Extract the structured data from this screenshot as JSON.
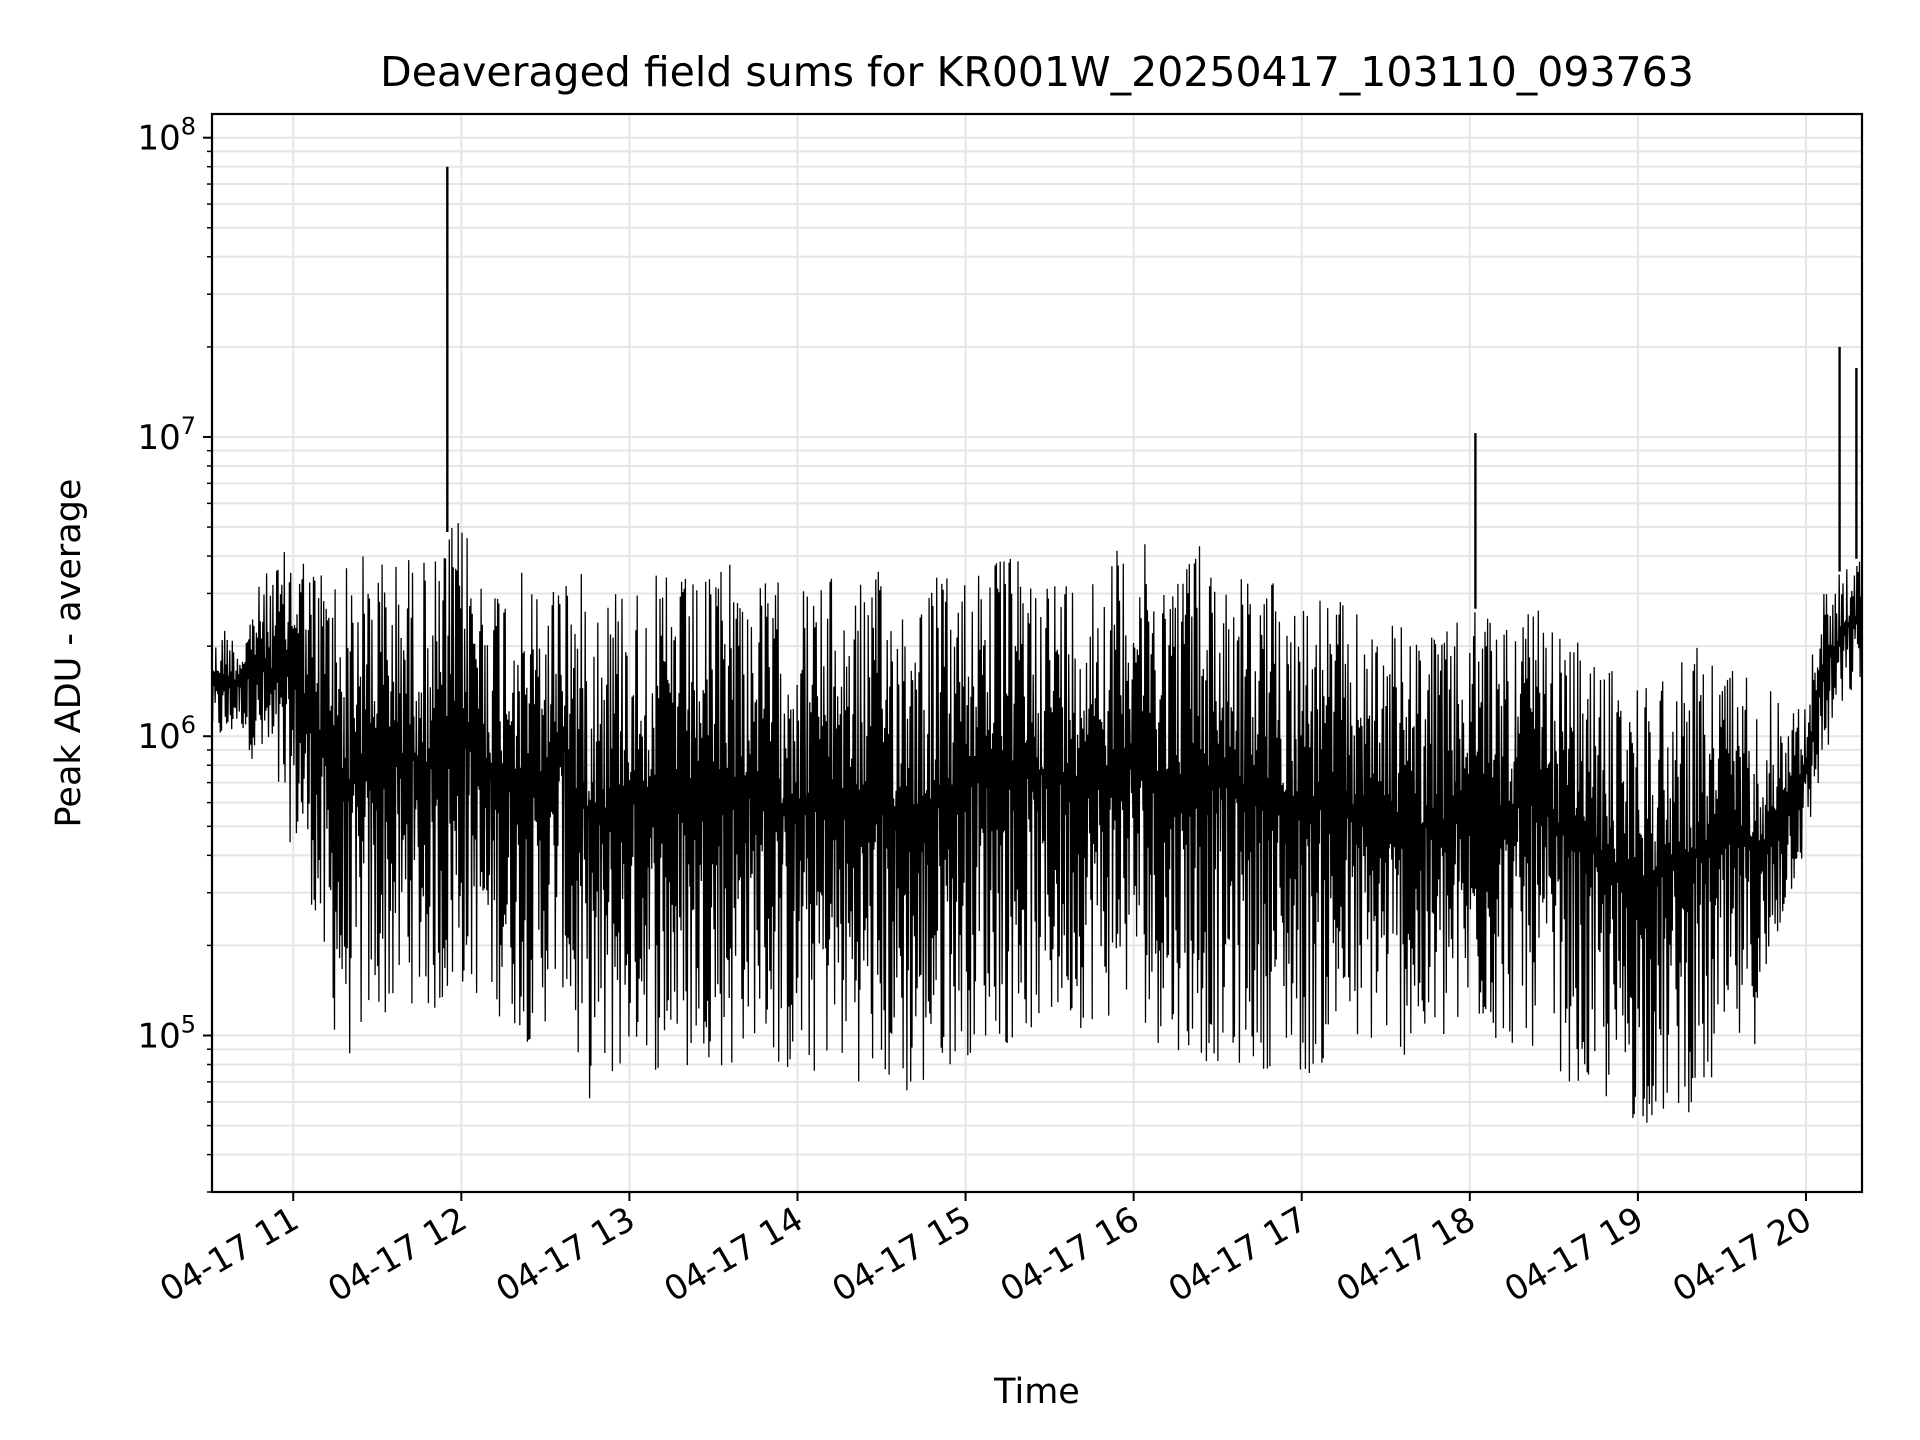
{
  "chart_data": {
    "type": "line",
    "title": "Deaveraged field sums for KR001W_20250417_103110_093763",
    "xlabel": "Time",
    "ylabel": "Peak ADU - average",
    "yscale": "log",
    "xlim": [
      "2025-04-17 10:31",
      "2025-04-17 20:20"
    ],
    "ylim": [
      30000,
      120000000
    ],
    "grid": true,
    "legend": "none",
    "line_color": "#000000",
    "grid_color": "#e5e5e5",
    "x_ticks": [
      {
        "t": "2025-04-17 11:00",
        "label": "04-17 11"
      },
      {
        "t": "2025-04-17 12:00",
        "label": "04-17 12"
      },
      {
        "t": "2025-04-17 13:00",
        "label": "04-17 13"
      },
      {
        "t": "2025-04-17 14:00",
        "label": "04-17 14"
      },
      {
        "t": "2025-04-17 15:00",
        "label": "04-17 15"
      },
      {
        "t": "2025-04-17 16:00",
        "label": "04-17 16"
      },
      {
        "t": "2025-04-17 17:00",
        "label": "04-17 17"
      },
      {
        "t": "2025-04-17 18:00",
        "label": "04-17 18"
      },
      {
        "t": "2025-04-17 19:00",
        "label": "04-17 19"
      },
      {
        "t": "2025-04-17 20:00",
        "label": "04-17 20"
      }
    ],
    "y_ticks": [
      {
        "value": 100000,
        "base": "10",
        "exp": "5"
      },
      {
        "value": 1000000,
        "base": "10",
        "exp": "6"
      },
      {
        "value": 10000000,
        "base": "10",
        "exp": "7"
      },
      {
        "value": 100000000,
        "base": "10",
        "exp": "8"
      }
    ],
    "series": [
      {
        "x": [
          "2025-04-17 10:31",
          "2025-04-17 10:35",
          "2025-04-17 10:40",
          "2025-04-17 10:45",
          "2025-04-17 10:50",
          "2025-04-17 10:55",
          "2025-04-17 11:00",
          "2025-04-17 11:05",
          "2025-04-17 11:10",
          "2025-04-17 11:15",
          "2025-04-17 11:20",
          "2025-04-17 11:25",
          "2025-04-17 11:30",
          "2025-04-17 11:35",
          "2025-04-17 11:40",
          "2025-04-17 11:45",
          "2025-04-17 11:50",
          "2025-04-17 11:55",
          "2025-04-17 12:00",
          "2025-04-17 12:05",
          "2025-04-17 12:10",
          "2025-04-17 12:15",
          "2025-04-17 12:20",
          "2025-04-17 12:25",
          "2025-04-17 12:30",
          "2025-04-17 12:35",
          "2025-04-17 12:40",
          "2025-04-17 12:45",
          "2025-04-17 12:50",
          "2025-04-17 12:55",
          "2025-04-17 13:00",
          "2025-04-17 13:05",
          "2025-04-17 13:10",
          "2025-04-17 13:15",
          "2025-04-17 13:20",
          "2025-04-17 13:25",
          "2025-04-17 13:30",
          "2025-04-17 13:35",
          "2025-04-17 13:40",
          "2025-04-17 13:45",
          "2025-04-17 13:50",
          "2025-04-17 13:55",
          "2025-04-17 14:00",
          "2025-04-17 14:05",
          "2025-04-17 14:10",
          "2025-04-17 14:15",
          "2025-04-17 14:20",
          "2025-04-17 14:25",
          "2025-04-17 14:30",
          "2025-04-17 14:35",
          "2025-04-17 14:40",
          "2025-04-17 14:45",
          "2025-04-17 14:50",
          "2025-04-17 14:55",
          "2025-04-17 15:00",
          "2025-04-17 15:05",
          "2025-04-17 15:10",
          "2025-04-17 15:15",
          "2025-04-17 15:20",
          "2025-04-17 15:25",
          "2025-04-17 15:30",
          "2025-04-17 15:35",
          "2025-04-17 15:40",
          "2025-04-17 15:45",
          "2025-04-17 15:50",
          "2025-04-17 15:55",
          "2025-04-17 16:00",
          "2025-04-17 16:05",
          "2025-04-17 16:10",
          "2025-04-17 16:15",
          "2025-04-17 16:20",
          "2025-04-17 16:25",
          "2025-04-17 16:30",
          "2025-04-17 16:35",
          "2025-04-17 16:40",
          "2025-04-17 16:45",
          "2025-04-17 16:50",
          "2025-04-17 16:55",
          "2025-04-17 17:00",
          "2025-04-17 17:05",
          "2025-04-17 17:10",
          "2025-04-17 17:15",
          "2025-04-17 17:20",
          "2025-04-17 17:25",
          "2025-04-17 17:30",
          "2025-04-17 17:35",
          "2025-04-17 17:40",
          "2025-04-17 17:45",
          "2025-04-17 17:50",
          "2025-04-17 17:55",
          "2025-04-17 18:00",
          "2025-04-17 18:05",
          "2025-04-17 18:10",
          "2025-04-17 18:15",
          "2025-04-17 18:20",
          "2025-04-17 18:25",
          "2025-04-17 18:30",
          "2025-04-17 18:35",
          "2025-04-17 18:40",
          "2025-04-17 18:45",
          "2025-04-17 18:50",
          "2025-04-17 18:55",
          "2025-04-17 19:00",
          "2025-04-17 19:05",
          "2025-04-17 19:10",
          "2025-04-17 19:15",
          "2025-04-17 19:20",
          "2025-04-17 19:25",
          "2025-04-17 19:30",
          "2025-04-17 19:35",
          "2025-04-17 19:40",
          "2025-04-17 19:45",
          "2025-04-17 19:50",
          "2025-04-17 19:55",
          "2025-04-17 20:00",
          "2025-04-17 20:05",
          "2025-04-17 20:10",
          "2025-04-17 20:15",
          "2025-04-17 20:20"
        ],
        "y_high": [
          2000000,
          2400000,
          2000000,
          3000000,
          3600000,
          4000000,
          5000000,
          3800000,
          4000000,
          3800000,
          4000000,
          4200000,
          4200000,
          3900000,
          4200000,
          4000000,
          4000000,
          5000000,
          5500000,
          4000000,
          3500000,
          3700000,
          3600000,
          3300000,
          3000000,
          4500000,
          3500000,
          3600000,
          3400000,
          3500000,
          3400000,
          3300000,
          3500000,
          3600000,
          3400000,
          3300000,
          3500000,
          5000000,
          3400000,
          3300000,
          3400000,
          3300000,
          3300000,
          3300000,
          3500000,
          3200000,
          3300000,
          3500000,
          3600000,
          3300000,
          3500000,
          3400000,
          3600000,
          3400000,
          3700000,
          5000000,
          4000000,
          4200000,
          3800000,
          4000000,
          3700000,
          3600000,
          3600000,
          4000000,
          4000000,
          4400000,
          5000000,
          4200000,
          4000000,
          3800000,
          5000000,
          4500000,
          4000000,
          4000000,
          3600000,
          3500000,
          3400000,
          3300000,
          3200000,
          3100000,
          3000000,
          2800000,
          2600000,
          2500000,
          2400000,
          2400000,
          2300000,
          2200000,
          2300000,
          2400000,
          2500000,
          3000000,
          2600000,
          2600000,
          2800000,
          2600000,
          2400000,
          2200000,
          2000000,
          1900000,
          1700000,
          1600000,
          1600000,
          1600000,
          1800000,
          2000000,
          2000000,
          2000000,
          1900000,
          1800000,
          1700000,
          1500000,
          1400000,
          1300000,
          1300000,
          3000000,
          3400000,
          3800000,
          4000000
        ],
        "y_low": [
          1000000,
          900000,
          1100000,
          800000,
          700000,
          500000,
          400000,
          300000,
          130000,
          90000,
          80000,
          100000,
          110000,
          110000,
          130000,
          120000,
          110000,
          120000,
          140000,
          130000,
          120000,
          110000,
          100000,
          90000,
          110000,
          150000,
          70000,
          60000,
          60000,
          70000,
          80000,
          90000,
          70000,
          80000,
          70000,
          90000,
          80000,
          70000,
          90000,
          100000,
          80000,
          70000,
          70000,
          70000,
          80000,
          75000,
          70000,
          70000,
          65000,
          60000,
          58000,
          60000,
          75000,
          80000,
          85000,
          90000,
          100000,
          90000,
          100000,
          100000,
          100000,
          110000,
          105000,
          110000,
          110000,
          120000,
          130000,
          100000,
          90000,
          90000,
          80000,
          80000,
          80000,
          75000,
          80000,
          75000,
          80000,
          80000,
          70000,
          75000,
          80000,
          90000,
          85000,
          90000,
          90000,
          85000,
          80000,
          80000,
          85000,
          90000,
          100000,
          100000,
          90000,
          90000,
          90000,
          90000,
          80000,
          70000,
          60000,
          60000,
          55000,
          50000,
          50000,
          50000,
          50000,
          55000,
          55000,
          60000,
          70000,
          80000,
          90000,
          100000,
          200000,
          300000,
          400000,
          700000,
          1000000,
          1300000,
          1500000
        ],
        "spikes": [
          {
            "x": "2025-04-17 11:55",
            "y": 80000000
          },
          {
            "x": "2025-04-17 18:02",
            "y": 10300000
          },
          {
            "x": "2025-04-17 20:12",
            "y": 20000000
          },
          {
            "x": "2025-04-17 20:18",
            "y": 17000000
          }
        ]
      }
    ]
  }
}
